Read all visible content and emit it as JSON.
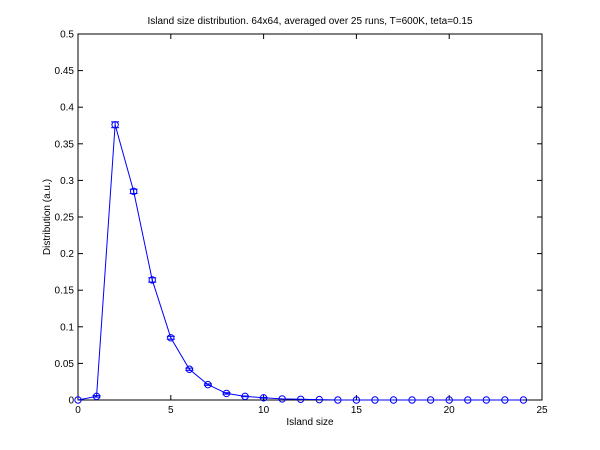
{
  "chart_data": {
    "type": "line",
    "title": "Island size distribution. 64x64, averaged over 25 runs, T=600K, teta=0.15",
    "xlabel": "Island size",
    "ylabel": "Distribution (a.u.)",
    "xlim": [
      0,
      25
    ],
    "ylim": [
      0,
      0.5
    ],
    "xticks": [
      0,
      5,
      10,
      15,
      20,
      25
    ],
    "yticks": [
      0,
      0.05,
      0.1,
      0.15,
      0.2,
      0.25,
      0.3,
      0.35,
      0.4,
      0.45,
      0.5
    ],
    "grid": false,
    "legend": "none",
    "marker": "circle",
    "error_bars": true,
    "colors": {
      "series": "#0000ff",
      "axes": "#000000",
      "background": "#ffffff"
    },
    "series": [
      {
        "x": [
          0,
          1,
          2,
          3,
          4,
          5,
          6,
          7,
          8,
          9,
          10,
          11,
          12,
          13,
          14,
          15,
          16,
          17,
          18,
          19,
          20,
          21,
          22,
          23,
          24
        ],
        "y": [
          0,
          0.005,
          0.376,
          0.285,
          0.164,
          0.085,
          0.042,
          0.021,
          0.009,
          0.005,
          0.003,
          0.0015,
          0.001,
          0.0005,
          0,
          0,
          0,
          0,
          0,
          0,
          0,
          0,
          0,
          0,
          0
        ],
        "yerr": [
          0,
          0.001,
          0.004,
          0.003,
          0.003,
          0.002,
          0.0015,
          0.001,
          0.001,
          0.0005,
          0.0005,
          0,
          0,
          0,
          0,
          0,
          0,
          0,
          0,
          0,
          0,
          0,
          0,
          0,
          0
        ]
      }
    ]
  }
}
